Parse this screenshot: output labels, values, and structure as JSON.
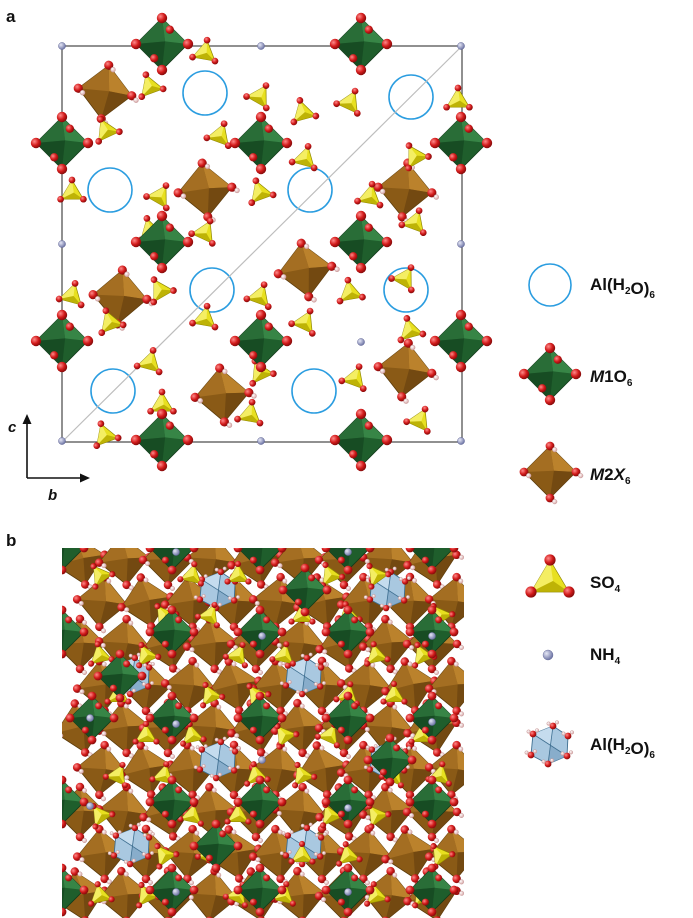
{
  "figure": {
    "panel_a_label": "a",
    "panel_b_label": "b",
    "axes": {
      "vertical": "c",
      "horizontal": "b"
    }
  },
  "legend": [
    {
      "key": "al-complex-circle",
      "parts": [
        [
          "Al(H",
          ""
        ],
        [
          "2",
          "sub"
        ],
        [
          "O)",
          ""
        ],
        [
          "6",
          "sub"
        ]
      ],
      "icon": "empty-blue-circle-icon"
    },
    {
      "key": "m1-octahedron",
      "parts": [
        [
          "M",
          "i"
        ],
        [
          "1O",
          ""
        ],
        [
          "6",
          "sub"
        ]
      ],
      "icon": "green-octahedron-icon"
    },
    {
      "key": "m2-octahedron",
      "parts": [
        [
          "M",
          "i"
        ],
        [
          "2",
          ""
        ],
        [
          "X",
          "i"
        ],
        [
          "6",
          "sub"
        ]
      ],
      "icon": "brown-octahedron-icon"
    },
    {
      "key": "sulfate",
      "parts": [
        [
          "SO",
          ""
        ],
        [
          "4",
          "sub"
        ]
      ],
      "icon": "yellow-tetrahedron-icon"
    },
    {
      "key": "ammonium",
      "parts": [
        [
          "NH",
          ""
        ],
        [
          "4",
          "sub"
        ]
      ],
      "icon": "grey-sphere-icon"
    },
    {
      "key": "al-complex-polyhedron",
      "parts": [
        [
          "Al(H",
          ""
        ],
        [
          "2",
          "sub"
        ],
        [
          "O)",
          ""
        ],
        [
          "6",
          "sub"
        ]
      ],
      "icon": "blue-octahedron-icon"
    }
  ],
  "colors": {
    "m1_green": "#1f5e2c",
    "m1_green_light": "#3a8a49",
    "m2_brown": "#8a5a16",
    "m2_brown_light": "#c0862f",
    "so4_yellow": "#e8e020",
    "so4_yellow_dark": "#b3a800",
    "oxygen_red": "#d21a1a",
    "hydrogen_pink": "#f3d6d6",
    "nh4_grey": "#9aa0c4",
    "al_blue": "#2b9de0",
    "al_fill": "#a9c8e0",
    "cell_line": "#555555"
  }
}
